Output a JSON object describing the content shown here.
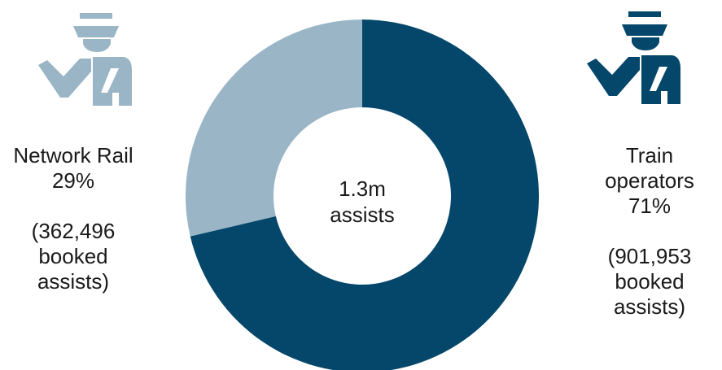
{
  "chart_data": {
    "type": "pie",
    "categories": [
      "Network Rail",
      "Train operators"
    ],
    "values": [
      362496,
      901953
    ],
    "percent_labels": [
      "29%",
      "71%"
    ],
    "series": [
      {
        "name": "Network Rail",
        "value": 362496,
        "percent": "29%",
        "color": "#9ab5c6"
      },
      {
        "name": "Train operators",
        "value": 901953,
        "percent": "71%",
        "color": "#04476a"
      }
    ],
    "center_text": [
      "1.3m",
      "assists"
    ]
  },
  "labels": {
    "network_rail": {
      "name": "Network Rail",
      "percent": "29%",
      "count_line1": "(362,496",
      "count_line2": "booked",
      "count_line3": "assists)"
    },
    "train_operators": {
      "name_line1": "Train",
      "name_line2": "operators",
      "percent": "71%",
      "count_line1": "(901,953",
      "count_line2": "booked",
      "count_line3": "assists)"
    }
  },
  "icons": {
    "network_rail_icon": "rail-staff-icon",
    "train_operators_icon": "rail-staff-icon"
  },
  "colors": {
    "network_rail": "#9ab5c6",
    "train_operators": "#04476a"
  }
}
